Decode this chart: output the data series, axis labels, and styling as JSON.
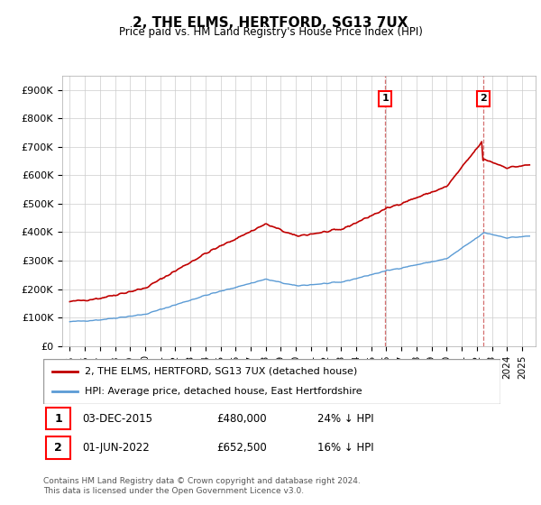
{
  "title": "2, THE ELMS, HERTFORD, SG13 7UX",
  "subtitle": "Price paid vs. HM Land Registry's House Price Index (HPI)",
  "ylim": [
    0,
    950000
  ],
  "yticks": [
    0,
    100000,
    200000,
    300000,
    400000,
    500000,
    600000,
    700000,
    800000,
    900000
  ],
  "ytick_labels": [
    "£0",
    "£100K",
    "£200K",
    "£300K",
    "£400K",
    "£500K",
    "£600K",
    "£700K",
    "£800K",
    "£900K"
  ],
  "hpi_color": "#5b9bd5",
  "price_color": "#c00000",
  "dashed_color": "#d06060",
  "sale1_date": 2015.917,
  "sale2_date": 2022.417,
  "sale1_price": 480000,
  "sale2_price": 652500,
  "legend_line1": "2, THE ELMS, HERTFORD, SG13 7UX (detached house)",
  "legend_line2": "HPI: Average price, detached house, East Hertfordshire",
  "sale1_label": "1",
  "sale2_label": "2",
  "sale1_text_date": "03-DEC-2015",
  "sale2_text_date": "01-JUN-2022",
  "sale1_text_price": "£480,000",
  "sale2_text_price": "£652,500",
  "sale1_text_hpi": "24% ↓ HPI",
  "sale2_text_hpi": "16% ↓ HPI",
  "footer": "Contains HM Land Registry data © Crown copyright and database right 2024.\nThis data is licensed under the Open Government Licence v3.0.",
  "background_color": "#ffffff",
  "grid_color": "#cccccc",
  "xlim_min": 1994.5,
  "xlim_max": 2025.9
}
